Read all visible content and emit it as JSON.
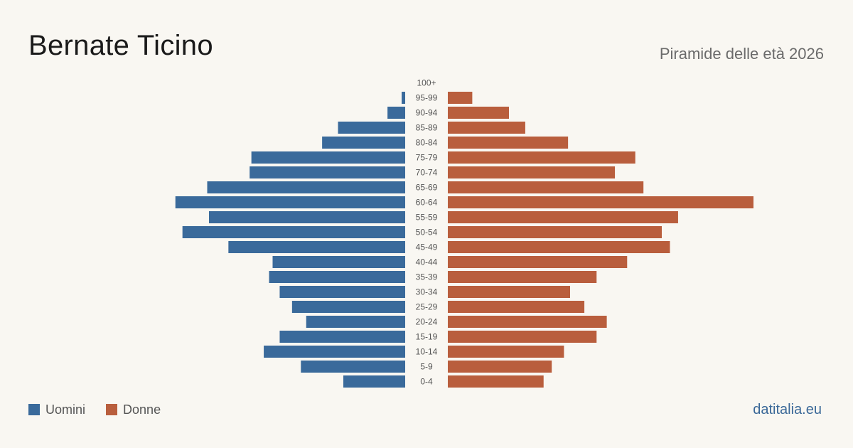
{
  "header": {
    "title": "Bernate Ticino",
    "subtitle": "Piramide delle età 2026"
  },
  "legend": {
    "men_label": "Uomini",
    "women_label": "Donne"
  },
  "footer": {
    "brand": "datitalia.eu"
  },
  "colors": {
    "men": "#3a6a9b",
    "women": "#b95e3d",
    "background": "#f9f7f2",
    "age_label": "#555555"
  },
  "chart_data": {
    "type": "bar",
    "orientation": "horizontal-pyramid",
    "categories": [
      "100+",
      "95-99",
      "90-94",
      "85-89",
      "80-84",
      "75-79",
      "70-74",
      "65-69",
      "60-64",
      "55-59",
      "50-54",
      "45-49",
      "40-44",
      "35-39",
      "30-34",
      "25-29",
      "20-24",
      "15-19",
      "10-14",
      "5-9",
      "0-4"
    ],
    "series": [
      {
        "name": "Uomini",
        "values": [
          0,
          2,
          10,
          38,
          47,
          87,
          88,
          112,
          130,
          111,
          126,
          100,
          75,
          77,
          71,
          64,
          56,
          71,
          80,
          59,
          35
        ]
      },
      {
        "name": "Donne",
        "values": [
          0,
          12,
          30,
          38,
          59,
          92,
          82,
          96,
          150,
          113,
          105,
          109,
          88,
          73,
          60,
          67,
          78,
          73,
          57,
          51,
          47
        ]
      }
    ],
    "xlim": [
      0,
      150
    ],
    "grid": false,
    "legend_position": "bottom-left"
  }
}
